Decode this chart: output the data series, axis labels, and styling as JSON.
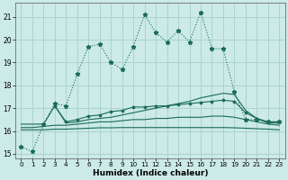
{
  "xlabel": "Humidex (Indice chaleur)",
  "background_color": "#cceae7",
  "grid_color": "#aad4d0",
  "line_color": "#1a6b5a",
  "xlim_min": -0.5,
  "xlim_max": 23.5,
  "ylim_min": 14.8,
  "ylim_max": 21.6,
  "yticks": [
    15,
    16,
    17,
    18,
    19,
    20,
    21
  ],
  "xticks": [
    0,
    1,
    2,
    3,
    4,
    5,
    6,
    7,
    8,
    9,
    10,
    11,
    12,
    13,
    14,
    15,
    16,
    17,
    18,
    19,
    20,
    21,
    22,
    23
  ],
  "series1_x": [
    0,
    1,
    2,
    3,
    4,
    5,
    6,
    7,
    8,
    9,
    10,
    11,
    12,
    13,
    14,
    15,
    16,
    17,
    18,
    19,
    20,
    21,
    22,
    23
  ],
  "series1_y": [
    15.3,
    15.1,
    16.3,
    17.2,
    17.1,
    18.5,
    19.7,
    19.8,
    19.0,
    18.7,
    19.7,
    21.1,
    20.3,
    19.9,
    20.4,
    19.9,
    21.2,
    19.6,
    19.6,
    17.7,
    16.5,
    16.5,
    16.4,
    16.4
  ],
  "series2_x": [
    0,
    1,
    2,
    3,
    4,
    5,
    6,
    7,
    8,
    9,
    10,
    11,
    12,
    13,
    14,
    15,
    16,
    17,
    18,
    19,
    20,
    21,
    22,
    23
  ],
  "series2_y": [
    16.3,
    16.3,
    16.3,
    17.1,
    16.35,
    16.4,
    16.5,
    16.55,
    16.6,
    16.7,
    16.8,
    16.9,
    17.0,
    17.1,
    17.2,
    17.3,
    17.45,
    17.55,
    17.65,
    17.6,
    16.9,
    16.55,
    16.35,
    16.35
  ],
  "series3_x": [
    0,
    1,
    2,
    3,
    4,
    5,
    6,
    7,
    8,
    9,
    10,
    11,
    12,
    13,
    14,
    15,
    16,
    17,
    18,
    19,
    20,
    21,
    22,
    23
  ],
  "series3_y": [
    16.15,
    16.15,
    16.2,
    16.25,
    16.25,
    16.3,
    16.35,
    16.4,
    16.4,
    16.45,
    16.5,
    16.5,
    16.55,
    16.55,
    16.6,
    16.6,
    16.6,
    16.65,
    16.65,
    16.6,
    16.5,
    16.4,
    16.3,
    16.25
  ],
  "series4_x": [
    0,
    1,
    2,
    3,
    4,
    5,
    6,
    7,
    8,
    9,
    10,
    11,
    12,
    13,
    14,
    15,
    16,
    17,
    18,
    19,
    20,
    21,
    22,
    23
  ],
  "series4_y": [
    16.05,
    16.05,
    16.05,
    16.08,
    16.08,
    16.1,
    16.12,
    16.14,
    16.14,
    16.15,
    16.15,
    16.15,
    16.15,
    16.15,
    16.15,
    16.15,
    16.15,
    16.15,
    16.15,
    16.14,
    16.12,
    16.1,
    16.08,
    16.05
  ],
  "series5_x": [
    3,
    4,
    5,
    6,
    7,
    8,
    9,
    10,
    11,
    12,
    13,
    14,
    15,
    16,
    17,
    18,
    19,
    20,
    21,
    22,
    23
  ],
  "series5_y": [
    17.1,
    16.4,
    16.5,
    16.65,
    16.7,
    16.85,
    16.9,
    17.05,
    17.05,
    17.1,
    17.1,
    17.15,
    17.2,
    17.25,
    17.3,
    17.35,
    17.3,
    16.8,
    16.55,
    16.4,
    16.4
  ]
}
